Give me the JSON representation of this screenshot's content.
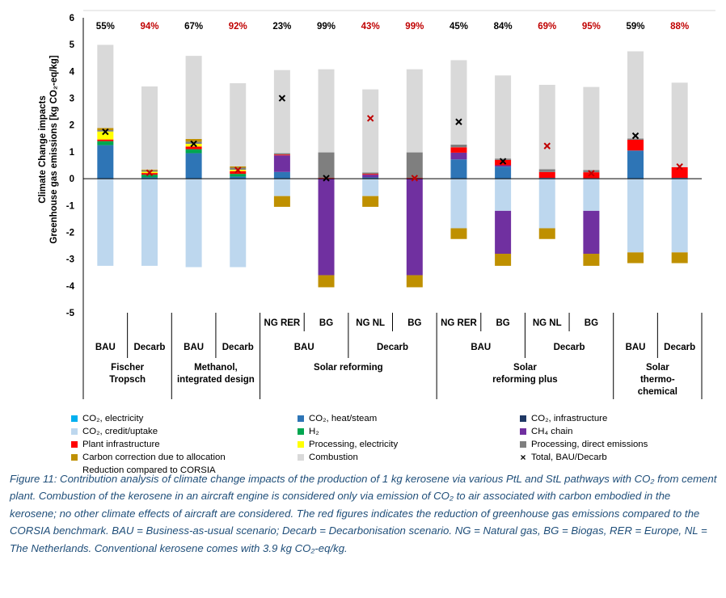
{
  "chart_data": {
    "type": "bar",
    "stacked": true,
    "ylabel_lines": [
      "Climate Change impacts",
      "Greenhouse gas emissions [kg CO₂-eq/kg]"
    ],
    "ylim": [
      -5,
      6
    ],
    "yticks": [
      "-5",
      "-4",
      "-3",
      "-2",
      "-1",
      "0",
      "1",
      "2",
      "3",
      "4",
      "5",
      "6"
    ],
    "grid": false,
    "legend_position": "bottom",
    "categories_level1": [
      "BAU",
      "Decarb",
      "BAU",
      "Decarb",
      "NG RER",
      "BG",
      "NG NL",
      "BG",
      "NG RER",
      "BG",
      "NG NL",
      "BG",
      "BAU",
      "Decarb"
    ],
    "categories_level2": [
      "BAU",
      "Decarb",
      "BAU",
      "Decarb",
      "BAU",
      "BAU",
      "Decarb",
      "Decarb",
      "BAU",
      "BAU",
      "Decarb",
      "Decarb",
      "BAU",
      "Decarb"
    ],
    "categories_level3": [
      "Fischer Tropsch",
      "Fischer Tropsch",
      "Methanol, integrated design",
      "Methanol, integrated design",
      "Solar reforming",
      "Solar reforming",
      "Solar reforming",
      "Solar reforming",
      "Solar reforming plus",
      "Solar reforming plus",
      "Solar reforming plus",
      "Solar reforming plus",
      "Solar thermo-chemical",
      "Solar thermo-chemical"
    ],
    "level2_labels": [
      "BAU",
      "Decarb",
      "BAU",
      "Decarb"
    ],
    "level3_labels": [
      [
        "Fischer",
        "Tropsch"
      ],
      [
        "Methanol,",
        "integrated design"
      ],
      [
        "Solar reforming"
      ],
      [
        "Solar",
        "reforming plus"
      ],
      [
        "Solar",
        "thermo-",
        "chemical"
      ]
    ],
    "reduction_labels": [
      "55%",
      "94%",
      "67%",
      "92%",
      "23%",
      "99%",
      "43%",
      "99%",
      "45%",
      "84%",
      "69%",
      "95%",
      "59%",
      "88%"
    ],
    "reduction_label_colors": [
      "#000000",
      "#c00000",
      "#000000",
      "#c00000",
      "#000000",
      "#000000",
      "#c00000",
      "#c00000",
      "#000000",
      "#000000",
      "#c00000",
      "#c00000",
      "#000000",
      "#c00000"
    ],
    "series": [
      {
        "key": "co2_heat",
        "name": "CO₂, heat/steam",
        "color": "#2e75b6",
        "values": [
          1.25,
          0.05,
          0.95,
          0.08,
          0.25,
          0,
          0.05,
          0,
          0.72,
          0.45,
          0.03,
          0.02,
          1.05,
          0.03
        ]
      },
      {
        "key": "h2",
        "name": "H₂",
        "color": "#00a650",
        "values": [
          0.15,
          0.1,
          0.15,
          0.1,
          0,
          0,
          0,
          0,
          0,
          0,
          0,
          0,
          0,
          0
        ]
      },
      {
        "key": "ch4",
        "name": "CH₄ chain",
        "color": "#7030a0",
        "values": [
          0,
          0,
          0,
          0,
          0.62,
          0,
          0.1,
          0,
          0.25,
          0.05,
          0,
          0,
          0,
          0
        ]
      },
      {
        "key": "plant",
        "name": "Plant infrastructure",
        "color": "#ff0000",
        "values": [
          0.06,
          0.06,
          0.1,
          0.1,
          0.03,
          0.03,
          0.03,
          0.03,
          0.2,
          0.2,
          0.22,
          0.22,
          0.4,
          0.4
        ]
      },
      {
        "key": "processing_elec",
        "name": "Processing, electricity",
        "color": "#ffff00",
        "values": [
          0.3,
          0.05,
          0.1,
          0.05,
          0,
          0,
          0,
          0,
          0,
          0,
          0,
          0,
          0,
          0
        ]
      },
      {
        "key": "processing_direct",
        "name": "Processing, direct emissions",
        "color": "#7f7f7f",
        "values": [
          0.05,
          0.05,
          0.08,
          0.08,
          0.05,
          0.95,
          0.05,
          0.95,
          0.1,
          0.05,
          0.1,
          0.08,
          0.05,
          0
        ]
      },
      {
        "key": "carbon_corr_pos",
        "name": "Carbon correction due to allocation",
        "color": "#bf9000",
        "values": [
          0.08,
          0.03,
          0.1,
          0.05,
          0,
          0,
          0,
          0,
          0,
          0,
          0,
          0,
          0,
          0
        ]
      },
      {
        "key": "combustion",
        "name": "Combustion",
        "color": "#d9d9d9",
        "values": [
          3.1,
          3.1,
          3.1,
          3.1,
          3.1,
          3.1,
          3.1,
          3.1,
          3.15,
          3.1,
          3.15,
          3.1,
          3.25,
          3.15
        ]
      },
      {
        "key": "co2_credit",
        "name": "CO₂, credit/uptake",
        "color": "#bdd7ee",
        "values": [
          -3.25,
          -3.25,
          -3.3,
          -3.3,
          -0.65,
          0,
          -0.65,
          0,
          -1.85,
          -1.2,
          -1.85,
          -1.2,
          -2.75,
          -2.75
        ]
      },
      {
        "key": "ch4_neg",
        "name": "CH₄ chain",
        "color": "#7030a0",
        "values": [
          0,
          0,
          0,
          0,
          0,
          -3.6,
          0,
          -3.6,
          0,
          -1.6,
          0,
          -1.6,
          0,
          0
        ]
      },
      {
        "key": "carbon_corr_neg",
        "name": "Carbon correction due to allocation",
        "color": "#bf9000",
        "values": [
          0,
          0,
          0,
          0,
          -0.4,
          -0.45,
          -0.4,
          -0.45,
          -0.4,
          -0.45,
          -0.4,
          -0.45,
          -0.4,
          -0.4
        ]
      }
    ],
    "total_markers": [
      1.75,
      0.22,
      1.3,
      0.32,
      3.0,
      0.02,
      2.25,
      0.02,
      2.12,
      0.65,
      1.22,
      0.2,
      1.6,
      0.45
    ],
    "total_marker_colors": [
      "#000000",
      "#c00000",
      "#000000",
      "#c00000",
      "#000000",
      "#000000",
      "#c00000",
      "#c00000",
      "#000000",
      "#000000",
      "#c00000",
      "#c00000",
      "#000000",
      "#c00000"
    ]
  },
  "legend": [
    {
      "id": "co2-electricity",
      "label": "CO₂, electricity",
      "color": "#00b0f0",
      "marker": "square"
    },
    {
      "id": "co2-heat",
      "label": "CO₂, heat/steam",
      "color": "#2e75b6",
      "marker": "square"
    },
    {
      "id": "co2-infrastructure",
      "label": "CO₂, infrastructure",
      "color": "#1f3864",
      "marker": "square"
    },
    {
      "id": "co2-credit",
      "label": "CO₂, credit/uptake",
      "color": "#bdd7ee",
      "marker": "square"
    },
    {
      "id": "h2",
      "label": "H₂",
      "color": "#00a650",
      "marker": "square"
    },
    {
      "id": "ch4-chain",
      "label": "CH₄ chain",
      "color": "#7030a0",
      "marker": "square"
    },
    {
      "id": "plant-infrastructure",
      "label": "Plant infrastructure",
      "color": "#ff0000",
      "marker": "square"
    },
    {
      "id": "processing-electricity",
      "label": "Processing, electricity",
      "color": "#ffff00",
      "marker": "square"
    },
    {
      "id": "processing-direct",
      "label": "Processing, direct emissions",
      "color": "#7f7f7f",
      "marker": "square"
    },
    {
      "id": "carbon-correction",
      "label": "Carbon correction due to allocation",
      "color": "#bf9000",
      "marker": "square"
    },
    {
      "id": "combustion",
      "label": "Combustion",
      "color": "#d9d9d9",
      "marker": "square"
    },
    {
      "id": "total",
      "label": "Total, BAU/Decarb",
      "color": "#000000",
      "marker": "x"
    },
    {
      "id": "reduction-corsia",
      "label": "Reduction compared to CORSIA",
      "color": "",
      "marker": "none"
    }
  ],
  "caption": {
    "text": "Figure 11: Contribution analysis of climate change impacts of the production of 1 kg kerosene via various PtL and StL pathways with CO₂ from cement plant. Combustion of the kerosene in an aircraft engine is considered only via emission of CO₂ to air associated with carbon embodied in the kerosene; no other climate effects of aircraft are considered. The red figures indicates the reduction of greenhouse gas emissions compared to the CORSIA benchmark. BAU = Business-as-usual scenario; Decarb = Decarbonisation scenario. NG = Natural gas, BG = Biogas, RER = Europe, NL = The Netherlands. Conventional kerosene comes with 3.9 kg CO₂-eq/kg."
  }
}
